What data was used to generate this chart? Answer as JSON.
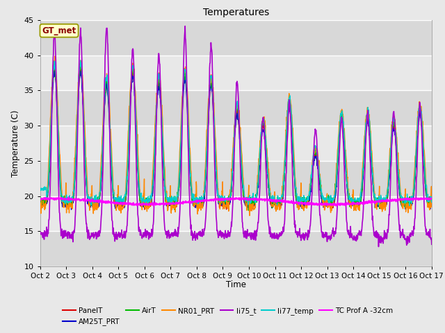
{
  "title": "Temperatures",
  "xlabel": "Time",
  "ylabel": "Temperature (C)",
  "ylim": [
    10,
    45
  ],
  "xlim": [
    0,
    15
  ],
  "xtick_labels": [
    "Oct 2",
    "Oct 3",
    "Oct 4",
    "Oct 5",
    "Oct 6",
    "Oct 7",
    "Oct 8",
    "Oct 9",
    "Oct 10",
    "Oct 11",
    "Oct 12",
    "Oct 13",
    "Oct 14",
    "Oct 15",
    "Oct 16",
    "Oct 17"
  ],
  "xtick_positions": [
    0,
    1,
    2,
    3,
    4,
    5,
    6,
    7,
    8,
    9,
    10,
    11,
    12,
    13,
    14,
    15
  ],
  "ytick_labels": [
    "10",
    "15",
    "20",
    "25",
    "30",
    "35",
    "40",
    "45"
  ],
  "ytick_positions": [
    10,
    15,
    20,
    25,
    30,
    35,
    40,
    45
  ],
  "fig_bg": "#e8e8e8",
  "plot_bg": "#e8e8e8",
  "grid_color": "#ffffff",
  "annotation_text": "GT_met",
  "annotation_color": "#8b0000",
  "annotation_bg": "#ffffcc",
  "annotation_edge": "#999900",
  "band_colors": [
    "#d8d8d8",
    "#e8e8e8"
  ],
  "series": {
    "PanelT": {
      "color": "#dd0000",
      "lw": 1.0,
      "zorder": 5
    },
    "AM25T_PRT": {
      "color": "#0000cc",
      "lw": 1.0,
      "zorder": 5
    },
    "AirT": {
      "color": "#00bb00",
      "lw": 1.0,
      "zorder": 5
    },
    "NR01_PRT": {
      "color": "#ff8800",
      "lw": 1.0,
      "zorder": 5
    },
    "li75_t": {
      "color": "#aa00cc",
      "lw": 1.2,
      "zorder": 6
    },
    "li77_temp": {
      "color": "#00cccc",
      "lw": 1.0,
      "zorder": 5
    },
    "TC Prof A -32cm": {
      "color": "#ff00ff",
      "lw": 1.5,
      "zorder": 7
    }
  },
  "legend": {
    "ncol": 6,
    "fontsize": 7.5,
    "row1": [
      "PanelT",
      "AM25T_PRT",
      "AirT",
      "NR01_PRT",
      "li75_t",
      "li77_temp"
    ],
    "row2": [
      "TC Prof A -32cm"
    ]
  }
}
